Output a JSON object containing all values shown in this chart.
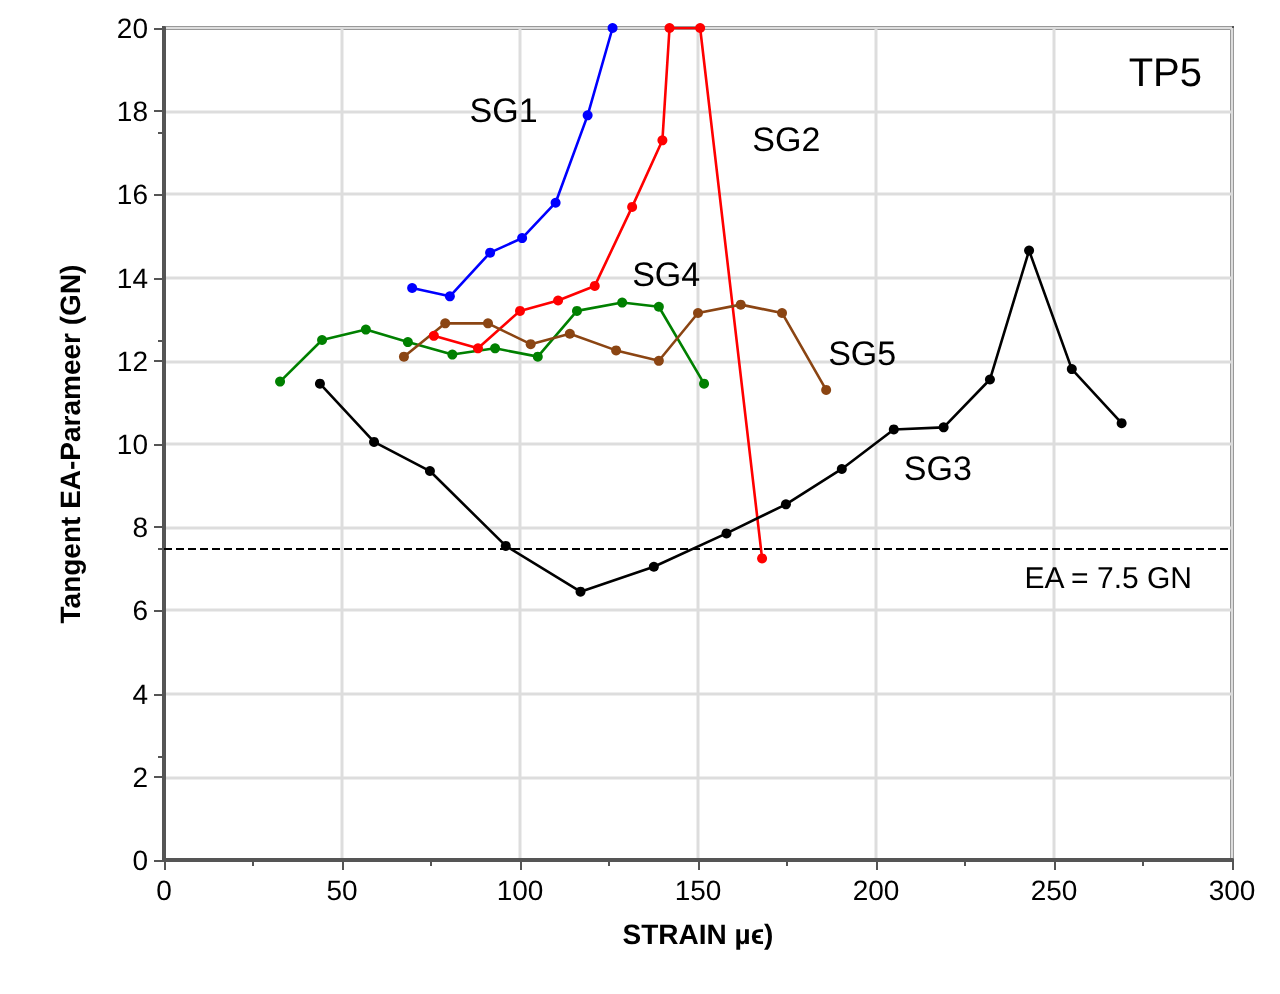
{
  "chart_data": {
    "type": "line",
    "title": "TP5",
    "xlabel": "STRAIN µϵ)",
    "ylabel": "Tangent EA-Parameer (GN)",
    "xlim": [
      0,
      300
    ],
    "xticks": [
      0,
      50,
      100,
      150,
      200,
      250,
      300
    ],
    "ylim": [
      0,
      20
    ],
    "yticks": [
      0,
      2,
      4,
      6,
      8,
      10,
      12,
      14,
      16,
      18,
      20
    ],
    "grid": true,
    "marker": "circle",
    "line_style": "solid",
    "series": [
      {
        "name": "SG1",
        "color": "#0000ff",
        "x": [
          69.7,
          80.3,
          91.6,
          100.6,
          110,
          119,
          126
        ],
        "values": [
          13.75,
          13.55,
          14.6,
          14.95,
          15.8,
          17.9,
          20
        ]
      },
      {
        "name": "SG2",
        "color": "#ff0000",
        "x": [
          75.8,
          88.2,
          100,
          110.7,
          121,
          131.5,
          140,
          142,
          150.6,
          168
        ],
        "values": [
          12.6,
          12.3,
          13.2,
          13.45,
          13.8,
          15.7,
          17.3,
          20,
          20,
          7.25
        ]
      },
      {
        "name": "SG3",
        "color": "#000000",
        "x": [
          43.8,
          59,
          74.7,
          96,
          117,
          137.6,
          158,
          174.7,
          190.4,
          205,
          219,
          232,
          243,
          255,
          269
        ],
        "values": [
          11.45,
          10.05,
          9.35,
          7.55,
          6.45,
          7.05,
          7.85,
          8.55,
          9.4,
          10.35,
          10.4,
          11.55,
          14.65,
          11.8,
          10.5
        ]
      },
      {
        "name": "SG4",
        "color": "#008000",
        "x": [
          32.6,
          44.4,
          56.7,
          68.5,
          81,
          93,
          105,
          116,
          128.7,
          139,
          151.7
        ],
        "values": [
          11.5,
          12.5,
          12.75,
          12.45,
          12.15,
          12.3,
          12.1,
          13.2,
          13.4,
          13.3,
          11.45
        ]
      },
      {
        "name": "SG5",
        "color": "#8b4513",
        "x": [
          67.4,
          79,
          91,
          103,
          114,
          127,
          139,
          150,
          162,
          173.6,
          186
        ],
        "values": [
          12.1,
          12.9,
          12.9,
          12.4,
          12.65,
          12.25,
          12.0,
          13.15,
          13.35,
          13.15,
          11.3
        ]
      }
    ],
    "ref_lines": [
      {
        "axis": "y",
        "value": 7.5,
        "label": "EA = 7.5 GN",
        "color": "#000000",
        "line_style": "dashed"
      }
    ]
  }
}
